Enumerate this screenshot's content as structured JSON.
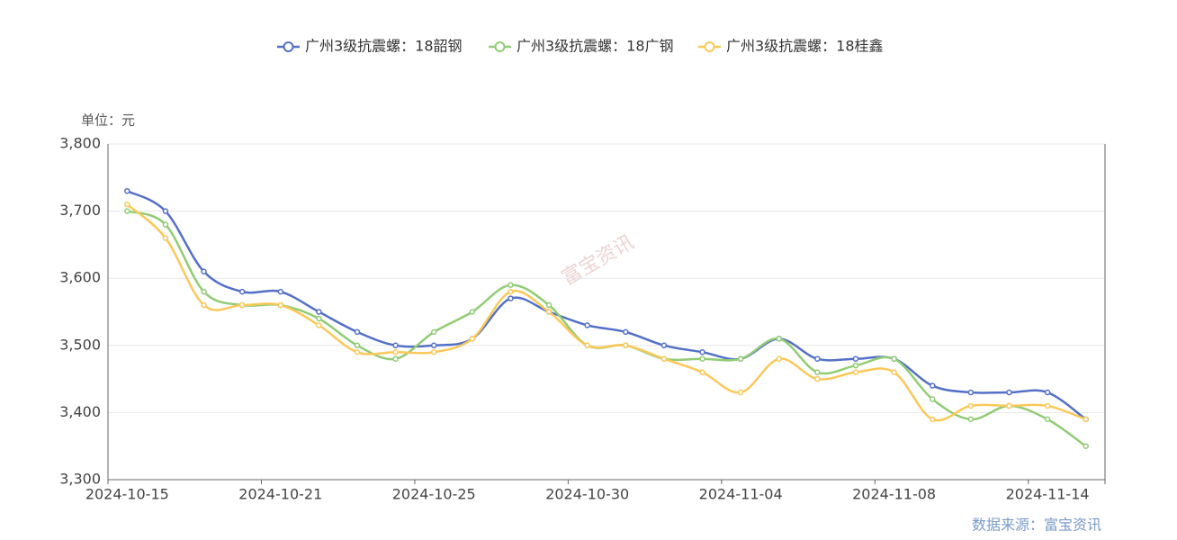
{
  "chart_data": {
    "type": "line",
    "unit_label": "单位：元",
    "source": "数据来源：富宝资讯",
    "watermark": "富宝资讯",
    "categories": [
      "2024-10-15",
      null,
      null,
      null,
      "2024-10-21",
      null,
      null,
      null,
      "2024-10-25",
      null,
      null,
      null,
      "2024-10-30",
      null,
      null,
      null,
      "2024-11-04",
      null,
      null,
      null,
      "2024-11-08",
      null,
      null,
      null,
      "2024-11-14",
      null
    ],
    "series": [
      {
        "name": "广州3级抗震螺：18韶钢",
        "color": "#5470c6",
        "values": [
          3730,
          3700,
          3610,
          3580,
          3580,
          3550,
          3520,
          3500,
          3500,
          3510,
          3570,
          3550,
          3530,
          3520,
          3500,
          3490,
          3480,
          3510,
          3480,
          3480,
          3480,
          3440,
          3430,
          3430,
          3430,
          3390
        ]
      },
      {
        "name": "广州3级抗震螺：18广钢",
        "color": "#91cc75",
        "values": [
          3700,
          3680,
          3580,
          3560,
          3560,
          3540,
          3500,
          3480,
          3520,
          3550,
          3590,
          3560,
          3500,
          3500,
          3480,
          3480,
          3480,
          3510,
          3460,
          3470,
          3480,
          3420,
          3390,
          3410,
          3390,
          3350
        ]
      },
      {
        "name": "广州3级抗震螺：18桂鑫",
        "color": "#fac858",
        "values": [
          3710,
          3660,
          3560,
          3560,
          3560,
          3530,
          3490,
          3490,
          3490,
          3510,
          3580,
          3550,
          3500,
          3500,
          3480,
          3460,
          3430,
          3480,
          3450,
          3460,
          3460,
          3390,
          3410,
          3410,
          3410,
          3390
        ]
      }
    ],
    "ylim": [
      3300,
      3800
    ],
    "yticks": [
      {
        "value": 3300,
        "label": "3,300"
      },
      {
        "value": 3400,
        "label": "3,400"
      },
      {
        "value": 3500,
        "label": "3,500"
      },
      {
        "value": 3600,
        "label": "3,600"
      },
      {
        "value": 3700,
        "label": "3,700"
      },
      {
        "value": 3800,
        "label": "3,800"
      }
    ],
    "grid": true
  }
}
